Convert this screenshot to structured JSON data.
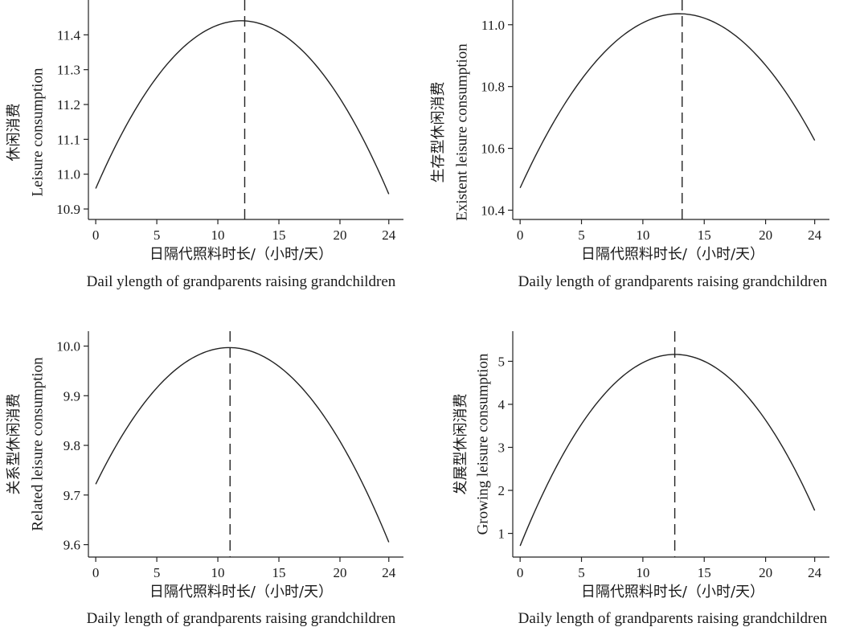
{
  "chart_data": [
    {
      "type": "line",
      "xlabel_cn": "日隔代照料时长/（小时/天）",
      "xlabel_en": "Dail ylength of grandparents raising grandchildren",
      "ylabel_cn": "休闲消费",
      "ylabel_en": "Leisure consumption",
      "xticks": [
        0,
        5,
        10,
        15,
        20,
        24
      ],
      "yticks": [
        10.9,
        11.0,
        11.1,
        11.2,
        11.3,
        11.4
      ],
      "ytick_labels": [
        "10.9",
        "11.0",
        "11.1",
        "11.2",
        "11.3",
        "11.4"
      ],
      "xlim": [
        -0.6,
        25.2
      ],
      "ylim": [
        10.87,
        11.5
      ],
      "series": [
        {
          "x": [
            0,
            3,
            6,
            9,
            12.2,
            15,
            18,
            21,
            24
          ],
          "y": [
            10.935,
            11.183,
            11.346,
            11.424,
            11.438,
            11.395,
            11.292,
            11.149,
            10.965
          ]
        }
      ],
      "peak_x": 12.2
    },
    {
      "type": "line",
      "xlabel_cn": "日隔代照料时长/（小时/天）",
      "xlabel_en": "Daily length of grandparents raising grandchildren",
      "ylabel_cn": "生存型休闲消费",
      "ylabel_en": "Existent leisure consumption",
      "xticks": [
        0,
        5,
        10,
        15,
        20,
        24
      ],
      "yticks": [
        10.4,
        10.6,
        10.8,
        11.0
      ],
      "ytick_labels": [
        "10.4",
        "10.6",
        "10.8",
        "11.0"
      ],
      "xlim": [
        -0.6,
        25.2
      ],
      "ylim": [
        10.37,
        11.08
      ],
      "series": [
        {
          "x": [
            0,
            3,
            6,
            9,
            13.2,
            16,
            19,
            22,
            24
          ],
          "y": [
            10.45,
            10.72,
            10.89,
            10.99,
            11.03,
            10.99,
            10.9,
            10.76,
            10.64
          ]
        }
      ],
      "peak_x": 13.2
    },
    {
      "type": "line",
      "xlabel_cn": "日隔代照料时长/（小时/天）",
      "xlabel_en": "Daily length of grandparents raising grandchildren",
      "ylabel_cn": "关系型休闲消费",
      "ylabel_en": "Related leisure consumption",
      "xticks": [
        0,
        5,
        10,
        15,
        20,
        24
      ],
      "yticks": [
        9.6,
        9.7,
        9.8,
        9.9,
        10.0
      ],
      "ytick_labels": [
        "9.6",
        "9.7",
        "9.8",
        "9.9",
        "10.0"
      ],
      "xlim": [
        -0.6,
        25.2
      ],
      "ylim": [
        9.575,
        10.03
      ],
      "series": [
        {
          "x": [
            0,
            3,
            6,
            9,
            11,
            14,
            17,
            20,
            24
          ],
          "y": [
            9.716,
            9.859,
            9.944,
            9.986,
            9.996,
            9.975,
            9.911,
            9.807,
            9.607
          ]
        }
      ],
      "peak_x": 11.0
    },
    {
      "type": "line",
      "xlabel_cn": "日隔代照料时长/（小时/天）",
      "xlabel_en": "Daily length of grandparents raising grandchildren",
      "ylabel_cn": "发展型休闲消费",
      "ylabel_en": "Growing leisure consumption",
      "xticks": [
        0,
        5,
        10,
        15,
        20,
        24
      ],
      "yticks": [
        1,
        2,
        3,
        4,
        5
      ],
      "ytick_labels": [
        "1",
        "2",
        "3",
        "4",
        "5"
      ],
      "xlim": [
        -0.6,
        25.2
      ],
      "ylim": [
        0.45,
        5.7
      ],
      "series": [
        {
          "x": [
            0,
            3,
            6,
            9,
            12.6,
            15,
            18,
            21,
            24
          ],
          "y": [
            0.67,
            2.65,
            3.98,
            4.74,
            5.07,
            4.96,
            4.42,
            3.33,
            1.43
          ]
        }
      ],
      "peak_x": 12.6
    }
  ]
}
